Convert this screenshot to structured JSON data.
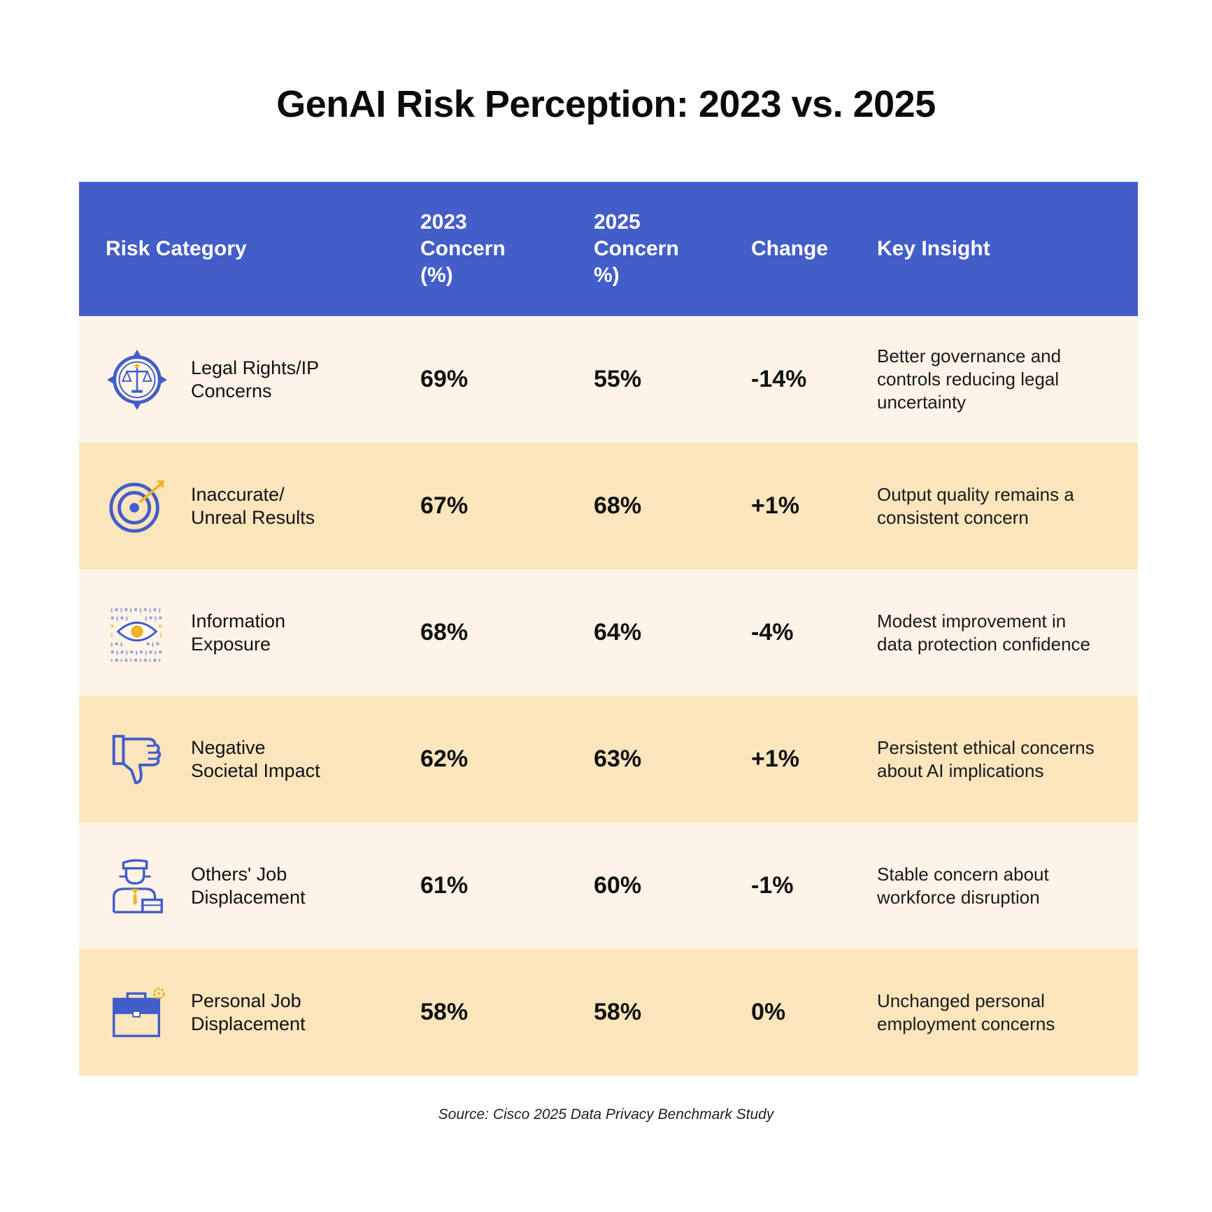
{
  "title": "GenAI Risk Perception: 2023 vs. 2025",
  "colors": {
    "header_bg": "#435dc9",
    "row_light": "#fdf4e7",
    "row_dark": "#fbe5bd",
    "icon_blue": "#435dc9",
    "icon_accent": "#f0b429"
  },
  "columns": {
    "category": "Risk Category",
    "c2023": [
      "2023",
      "Concern",
      "(%)"
    ],
    "c2025": [
      "2025",
      "Concern",
      "%)"
    ],
    "change": "Change",
    "insight": "Key Insight"
  },
  "rows": [
    {
      "icon": "scales-compass-icon",
      "category": [
        "Legal Rights/IP",
        "Concerns"
      ],
      "v2023": "69%",
      "v2025": "55%",
      "change": "-14%",
      "insight": [
        "Better governance and",
        "controls reducing legal",
        "uncertainty"
      ]
    },
    {
      "icon": "target-icon",
      "category": [
        "Inaccurate/",
        "Unreal Results"
      ],
      "v2023": "67%",
      "v2025": "68%",
      "change": "+1%",
      "insight": [
        "Output quality remains a",
        "consistent concern"
      ]
    },
    {
      "icon": "eye-data-icon",
      "category": [
        "Information",
        "Exposure"
      ],
      "v2023": "68%",
      "v2025": "64%",
      "change": "-4%",
      "insight": [
        "Modest improvement in",
        "data protection confidence"
      ]
    },
    {
      "icon": "thumbs-down-icon",
      "category": [
        "Negative",
        "Societal Impact"
      ],
      "v2023": "62%",
      "v2025": "63%",
      "change": "+1%",
      "insight": [
        "Persistent ethical concerns",
        "about AI implications"
      ]
    },
    {
      "icon": "worker-icon",
      "category": [
        "Others' Job",
        "Displacement"
      ],
      "v2023": "61%",
      "v2025": "60%",
      "change": "-1%",
      "insight": [
        "Stable concern about",
        "workforce disruption"
      ]
    },
    {
      "icon": "briefcase-icon",
      "category": [
        "Personal Job",
        "Displacement"
      ],
      "v2023": "58%",
      "v2025": "58%",
      "change": "0%",
      "insight": [
        "Unchanged personal",
        "employment concerns"
      ]
    }
  ],
  "chart_data": {
    "type": "table",
    "title": "GenAI Risk Perception: 2023 vs. 2025",
    "categories": [
      "Legal Rights/IP Concerns",
      "Inaccurate/ Unreal Results",
      "Information Exposure",
      "Negative Societal Impact",
      "Others' Job Displacement",
      "Personal Job Displacement"
    ],
    "series": [
      {
        "name": "2023 Concern (%)",
        "values": [
          69,
          67,
          68,
          62,
          61,
          58
        ]
      },
      {
        "name": "2025 Concern %)",
        "values": [
          55,
          68,
          64,
          63,
          60,
          58
        ]
      },
      {
        "name": "Change",
        "values": [
          -14,
          1,
          -4,
          1,
          -1,
          0
        ]
      }
    ]
  },
  "source": "Source: Cisco 2025 Data Privacy Benchmark Study"
}
